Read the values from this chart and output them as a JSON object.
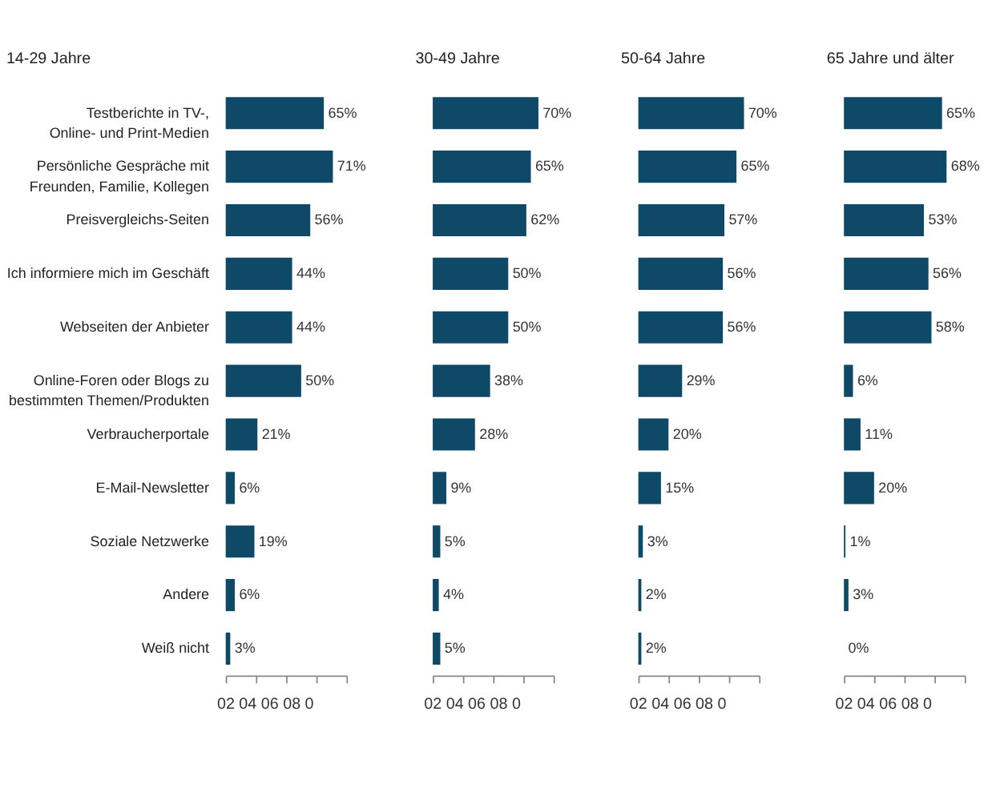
{
  "chart_data": [
    {
      "type": "bar",
      "orientation": "horizontal",
      "title": "14-29 Jahre",
      "color": "#0e4a68",
      "grid": false,
      "xlim": [
        0,
        80
      ],
      "annotations": [
        "02  04  06  08  0"
      ],
      "categories": [
        "Testberichte in TV-,\nOnline- und Print-Medien",
        "Persönliche Gespräche mit\nFreunden, Familie, Kollegen",
        "Preisvergleichs-Seiten",
        "Ich informiere mich im Geschäft",
        "Webseiten der Anbieter",
        "Online-Foren oder Blogs zu\nbestimmten Themen/Produkten",
        "Verbraucherportale",
        "E-Mail-Newsletter",
        "Soziale Netzwerke",
        "Andere",
        "Weiß nicht"
      ],
      "values": [
        65,
        71,
        56,
        44,
        44,
        50,
        21,
        6,
        19,
        6,
        3
      ],
      "value_labels": [
        "65%",
        "71%",
        "56%",
        "44%",
        "44%",
        "50%",
        "21%",
        "6%",
        "19%",
        "6%",
        "3%"
      ]
    },
    {
      "type": "bar",
      "orientation": "horizontal",
      "title": "30-49 Jahre",
      "color": "#0e4a68",
      "grid": false,
      "xlim": [
        0,
        80
      ],
      "annotations": [
        "02  04  06  08  0"
      ],
      "categories": [
        null,
        null,
        null,
        null,
        null,
        null,
        null,
        null,
        null,
        null,
        null
      ],
      "values": [
        70,
        65,
        62,
        50,
        50,
        38,
        28,
        9,
        5,
        4,
        5
      ],
      "value_labels": [
        "70%",
        "65%",
        "62%",
        "50%",
        "50%",
        "38%",
        "28%",
        "9%",
        "5%",
        "4%",
        "5%"
      ]
    },
    {
      "type": "bar",
      "orientation": "horizontal",
      "title": "50-64 Jahre",
      "color": "#0e4a68",
      "grid": false,
      "xlim": [
        0,
        80
      ],
      "annotations": [
        "02  04  06  08  0"
      ],
      "categories": [
        null,
        null,
        null,
        null,
        null,
        null,
        null,
        null,
        null,
        null,
        null
      ],
      "values": [
        70,
        65,
        57,
        56,
        56,
        29,
        20,
        15,
        3,
        2,
        2
      ],
      "value_labels": [
        "70%",
        "65%",
        "57%",
        "56%",
        "56%",
        "29%",
        "20%",
        "15%",
        "3%",
        "2%",
        "2%"
      ]
    },
    {
      "type": "bar",
      "orientation": "horizontal",
      "title": "65 Jahre und älter",
      "color": "#0e4a68",
      "grid": false,
      "xlim": [
        0,
        80
      ],
      "annotations": [
        "02  04  06  08  0"
      ],
      "categories": [
        null,
        null,
        null,
        null,
        null,
        null,
        null,
        null,
        null,
        null,
        null
      ],
      "values": [
        65,
        68,
        53,
        56,
        58,
        6,
        11,
        20,
        1,
        3,
        0
      ],
      "value_labels": [
        "65%",
        "68%",
        "53%",
        "56%",
        "58%",
        "6%",
        "11%",
        "20%",
        "1%",
        "3%",
        "0%"
      ]
    }
  ]
}
